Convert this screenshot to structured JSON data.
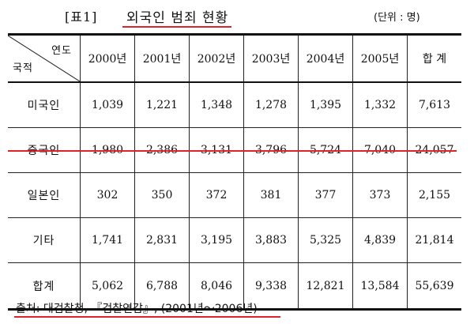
{
  "header": {
    "table_label": "[표1]",
    "title": "외국인 범죄 현황",
    "unit": "(단위 : 명)"
  },
  "table": {
    "corner_top": "연도",
    "corner_bottom": "국적",
    "columns": [
      "2000년",
      "2001년",
      "2002년",
      "2003년",
      "2004년",
      "2005년",
      "합 계"
    ],
    "rows": [
      {
        "label": "미국인",
        "values": [
          "1,039",
          "1,221",
          "1,348",
          "1,278",
          "1,395",
          "1,332",
          "7,613"
        ]
      },
      {
        "label": "중국인",
        "values": [
          "1,980",
          "2,386",
          "3,131",
          "3,796",
          "5,724",
          "7,040",
          "24,057"
        ]
      },
      {
        "label": "일본인",
        "values": [
          "302",
          "350",
          "372",
          "381",
          "377",
          "373",
          "2,155"
        ]
      },
      {
        "label": "기타",
        "values": [
          "1,741",
          "2,831",
          "3,195",
          "3,883",
          "5,325",
          "4,839",
          "21,814"
        ]
      },
      {
        "label": "합계",
        "values": [
          "5,062",
          "6,788",
          "8,046",
          "9,338",
          "12,821",
          "13,584",
          "55,639"
        ]
      }
    ]
  },
  "source": "출처: 대검찰청, 『검찰연감』, (2001년～2006년)",
  "colors": {
    "highlight_underline": "#e0232a",
    "text": "#111111"
  }
}
